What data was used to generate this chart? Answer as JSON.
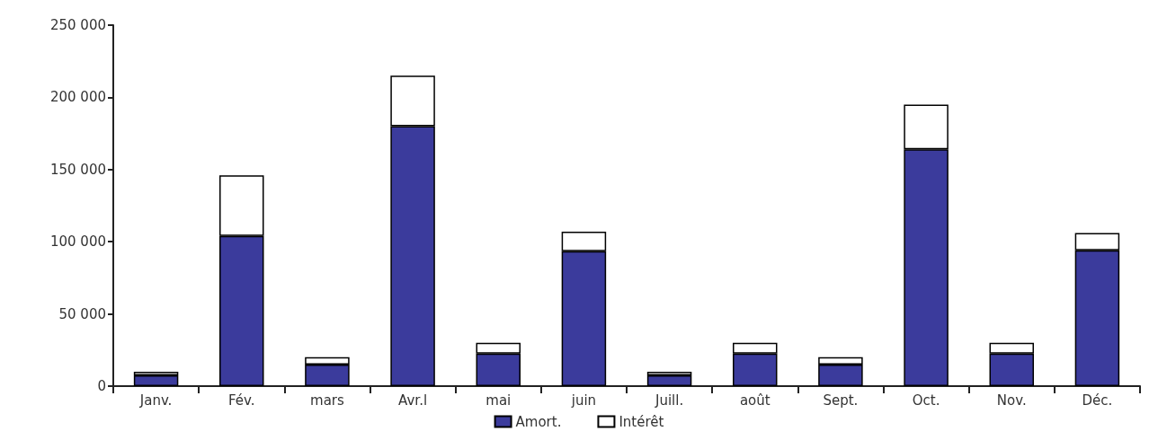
{
  "chart_data": {
    "type": "bar",
    "stacked": true,
    "categories": [
      "Janv.",
      "Fév.",
      "mars",
      "Avr.l",
      "mai",
      "juin",
      "Juill.",
      "août",
      "Sept.",
      "Oct.",
      "Nov.",
      "Déc."
    ],
    "series": [
      {
        "name": "Amort.",
        "color": "#3b3b9c",
        "values": [
          7500,
          104000,
          15000,
          180000,
          22500,
          93500,
          7500,
          22500,
          15000,
          164000,
          22500,
          94000
        ]
      },
      {
        "name": "Intérêt",
        "color": "#ffffff",
        "values": [
          2500,
          42000,
          5000,
          35000,
          7500,
          13500,
          2500,
          7500,
          5000,
          31000,
          7500,
          12000
        ]
      }
    ],
    "ylim": [
      0,
      250000
    ],
    "yticks": [
      0,
      {
        "value": 50000,
        "label": "50 000"
      },
      {
        "value": 100000,
        "label": "100 000"
      },
      {
        "value": 150000,
        "label": "150 000"
      },
      {
        "value": 200000,
        "label": "200 000"
      },
      {
        "value": 250000,
        "label": "250 000"
      }
    ],
    "grid": false,
    "legend": "bottom"
  }
}
